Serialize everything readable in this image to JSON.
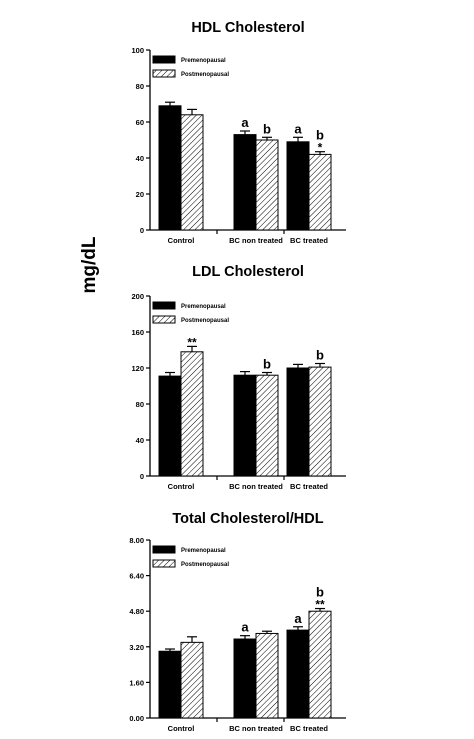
{
  "figure": {
    "shared_ylabel": "mg/dL"
  },
  "legend_labels": [
    "Premenopausal",
    "Postmenopausal"
  ],
  "chart_data": [
    {
      "type": "bar",
      "title": "HDL Cholesterol",
      "categories": [
        "Control",
        "BC non treated",
        "BC treated"
      ],
      "series": [
        {
          "name": "Premenopausal",
          "values": [
            69,
            53,
            49
          ],
          "errors": [
            2,
            2,
            2.5
          ],
          "pattern": "solid"
        },
        {
          "name": "Postmenopausal",
          "values": [
            64,
            50,
            42
          ],
          "errors": [
            3,
            1.5,
            1.5
          ],
          "pattern": "hatched"
        }
      ],
      "annotations": [
        [
          "",
          ""
        ],
        [
          "a",
          "b"
        ],
        [
          "a",
          "b\n*"
        ]
      ],
      "ylim": [
        0,
        100
      ],
      "yticks": [
        0,
        20,
        40,
        60,
        80,
        100
      ],
      "ytick_labels": [
        "0",
        "20",
        "40",
        "60",
        "80",
        "100"
      ],
      "legend": "top-left"
    },
    {
      "type": "bar",
      "title": "LDL Cholesterol",
      "categories": [
        "Control",
        "BC non treated",
        "BC treated"
      ],
      "series": [
        {
          "name": "Premenopausal",
          "values": [
            111,
            112,
            120
          ],
          "errors": [
            4,
            4,
            4
          ],
          "pattern": "solid"
        },
        {
          "name": "Postmenopausal",
          "values": [
            138,
            112,
            121
          ],
          "errors": [
            6,
            3,
            4
          ],
          "pattern": "hatched"
        }
      ],
      "annotations": [
        [
          "",
          "**"
        ],
        [
          "",
          "b"
        ],
        [
          "",
          "b"
        ]
      ],
      "ylim": [
        0,
        200
      ],
      "yticks": [
        0,
        40,
        80,
        120,
        160,
        200
      ],
      "ytick_labels": [
        "0",
        "40",
        "80",
        "120",
        "160",
        "200"
      ],
      "legend": "top-left"
    },
    {
      "type": "bar",
      "title": "Total Cholesterol/HDL",
      "categories": [
        "Control",
        "BC non treated",
        "BC treated"
      ],
      "series": [
        {
          "name": "Premenopausal",
          "values": [
            3.0,
            3.55,
            3.95
          ],
          "errors": [
            0.1,
            0.15,
            0.15
          ],
          "pattern": "solid"
        },
        {
          "name": "Postmenopausal",
          "values": [
            3.4,
            3.8,
            4.8
          ],
          "errors": [
            0.25,
            0.1,
            0.12
          ],
          "pattern": "hatched"
        }
      ],
      "annotations": [
        [
          "",
          ""
        ],
        [
          "a",
          ""
        ],
        [
          "a",
          "b\n**"
        ]
      ],
      "ylim": [
        0,
        8
      ],
      "yticks": [
        0,
        1.6,
        3.2,
        4.8,
        6.4,
        8.0
      ],
      "ytick_labels": [
        "0.00",
        "1.60",
        "3.20",
        "4.80",
        "6.40",
        "8.00"
      ],
      "legend": "top-left"
    }
  ]
}
